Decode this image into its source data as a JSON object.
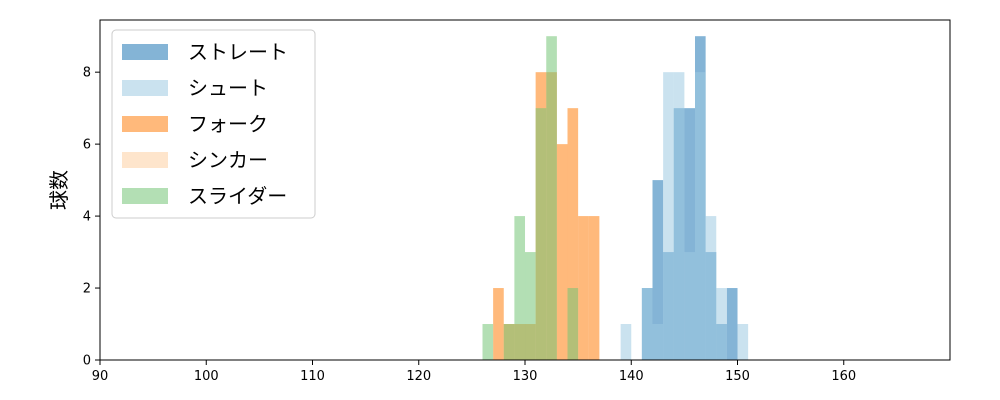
{
  "chart_data": {
    "type": "bar",
    "subtype": "overlapping-histogram",
    "xlabel": "",
    "ylabel": "球数",
    "xlim": [
      90,
      170
    ],
    "ylim": [
      0,
      9.45
    ],
    "xticks": [
      90,
      100,
      110,
      120,
      130,
      140,
      150,
      160
    ],
    "yticks": [
      0,
      2,
      4,
      6,
      8
    ],
    "grid": false,
    "legend_position": "upper-left",
    "bar_opacity": 0.55,
    "series": [
      {
        "name": "ストレート",
        "color": "#1f77b4",
        "bins": [
          {
            "x0": 141.0,
            "x1": 142.0,
            "count": 2
          },
          {
            "x0": 142.0,
            "x1": 143.0,
            "count": 5
          },
          {
            "x0": 143.0,
            "x1": 144.0,
            "count": 3
          },
          {
            "x0": 144.0,
            "x1": 145.0,
            "count": 7
          },
          {
            "x0": 145.0,
            "x1": 146.0,
            "count": 7
          },
          {
            "x0": 146.0,
            "x1": 147.0,
            "count": 9
          },
          {
            "x0": 147.0,
            "x1": 148.0,
            "count": 3
          },
          {
            "x0": 148.0,
            "x1": 149.0,
            "count": 1
          },
          {
            "x0": 149.0,
            "x1": 150.0,
            "count": 2
          }
        ]
      },
      {
        "name": "シュート",
        "color": "#9ecae1",
        "bins": [
          {
            "x0": 139.0,
            "x1": 140.0,
            "count": 1
          },
          {
            "x0": 141.0,
            "x1": 142.0,
            "count": 2
          },
          {
            "x0": 142.0,
            "x1": 143.0,
            "count": 1
          },
          {
            "x0": 143.0,
            "x1": 144.0,
            "count": 8
          },
          {
            "x0": 144.0,
            "x1": 145.0,
            "count": 8
          },
          {
            "x0": 145.0,
            "x1": 146.0,
            "count": 3
          },
          {
            "x0": 146.0,
            "x1": 147.0,
            "count": 8
          },
          {
            "x0": 147.0,
            "x1": 148.0,
            "count": 4
          },
          {
            "x0": 148.0,
            "x1": 149.0,
            "count": 2
          },
          {
            "x0": 150.0,
            "x1": 151.0,
            "count": 1
          }
        ]
      },
      {
        "name": "フォーク",
        "color": "#ff7f0e",
        "bins": [
          {
            "x0": 127.0,
            "x1": 128.0,
            "count": 2
          },
          {
            "x0": 128.0,
            "x1": 129.0,
            "count": 1
          },
          {
            "x0": 129.0,
            "x1": 130.0,
            "count": 1
          },
          {
            "x0": 130.0,
            "x1": 131.0,
            "count": 1
          },
          {
            "x0": 131.0,
            "x1": 132.0,
            "count": 8
          },
          {
            "x0": 132.0,
            "x1": 133.0,
            "count": 8
          },
          {
            "x0": 133.0,
            "x1": 134.0,
            "count": 6
          },
          {
            "x0": 134.0,
            "x1": 135.0,
            "count": 7
          },
          {
            "x0": 135.0,
            "x1": 136.0,
            "count": 4
          },
          {
            "x0": 136.0,
            "x1": 137.0,
            "count": 4
          }
        ]
      },
      {
        "name": "シンカー",
        "color": "#fdd0a2",
        "bins": []
      },
      {
        "name": "スライダー",
        "color": "#74c476",
        "bins": [
          {
            "x0": 126.0,
            "x1": 127.0,
            "count": 1
          },
          {
            "x0": 128.0,
            "x1": 129.0,
            "count": 1
          },
          {
            "x0": 129.0,
            "x1": 130.0,
            "count": 4
          },
          {
            "x0": 130.0,
            "x1": 131.0,
            "count": 3
          },
          {
            "x0": 131.0,
            "x1": 132.0,
            "count": 7
          },
          {
            "x0": 132.0,
            "x1": 133.0,
            "count": 9
          },
          {
            "x0": 134.0,
            "x1": 135.0,
            "count": 2
          }
        ]
      }
    ]
  }
}
